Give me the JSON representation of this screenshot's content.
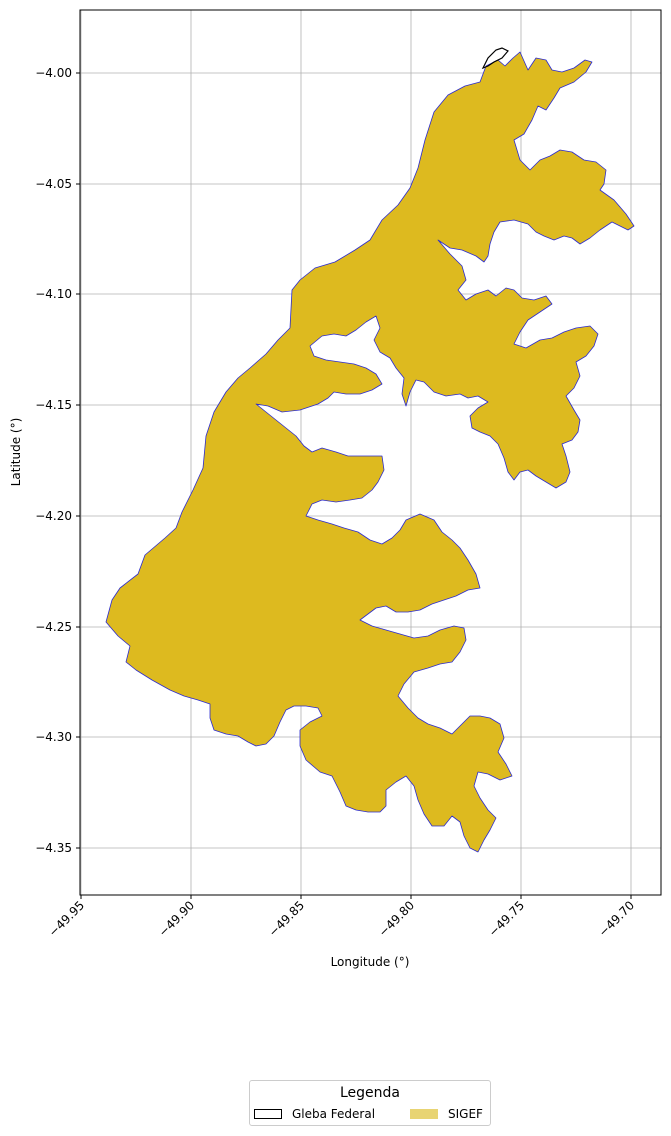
{
  "map": {
    "xlabel": "Longitude (°)",
    "ylabel": "Latitude (°)",
    "x_ticks": [
      "−49.95",
      "−49.90",
      "−49.85",
      "−49.80",
      "−49.75",
      "−49.70"
    ],
    "y_ticks": [
      "−4.00",
      "−4.05",
      "−4.10",
      "−4.15",
      "−4.20",
      "−4.25",
      "−4.30",
      "−4.35"
    ],
    "grid": true,
    "layers": [
      {
        "name": "SIGEF",
        "fill": "#DDBA1F",
        "edge": "#2b2bd0"
      },
      {
        "name": "Gleba Federal",
        "fill": "none",
        "edge": "#000000"
      }
    ]
  },
  "legend": {
    "title": "Legenda",
    "items": [
      {
        "label": "Gleba Federal",
        "fill": "#ffffff",
        "edge": "#000000"
      },
      {
        "label": "SIGEF",
        "fill": "#e8d473",
        "edge": "#e8d473"
      }
    ]
  }
}
